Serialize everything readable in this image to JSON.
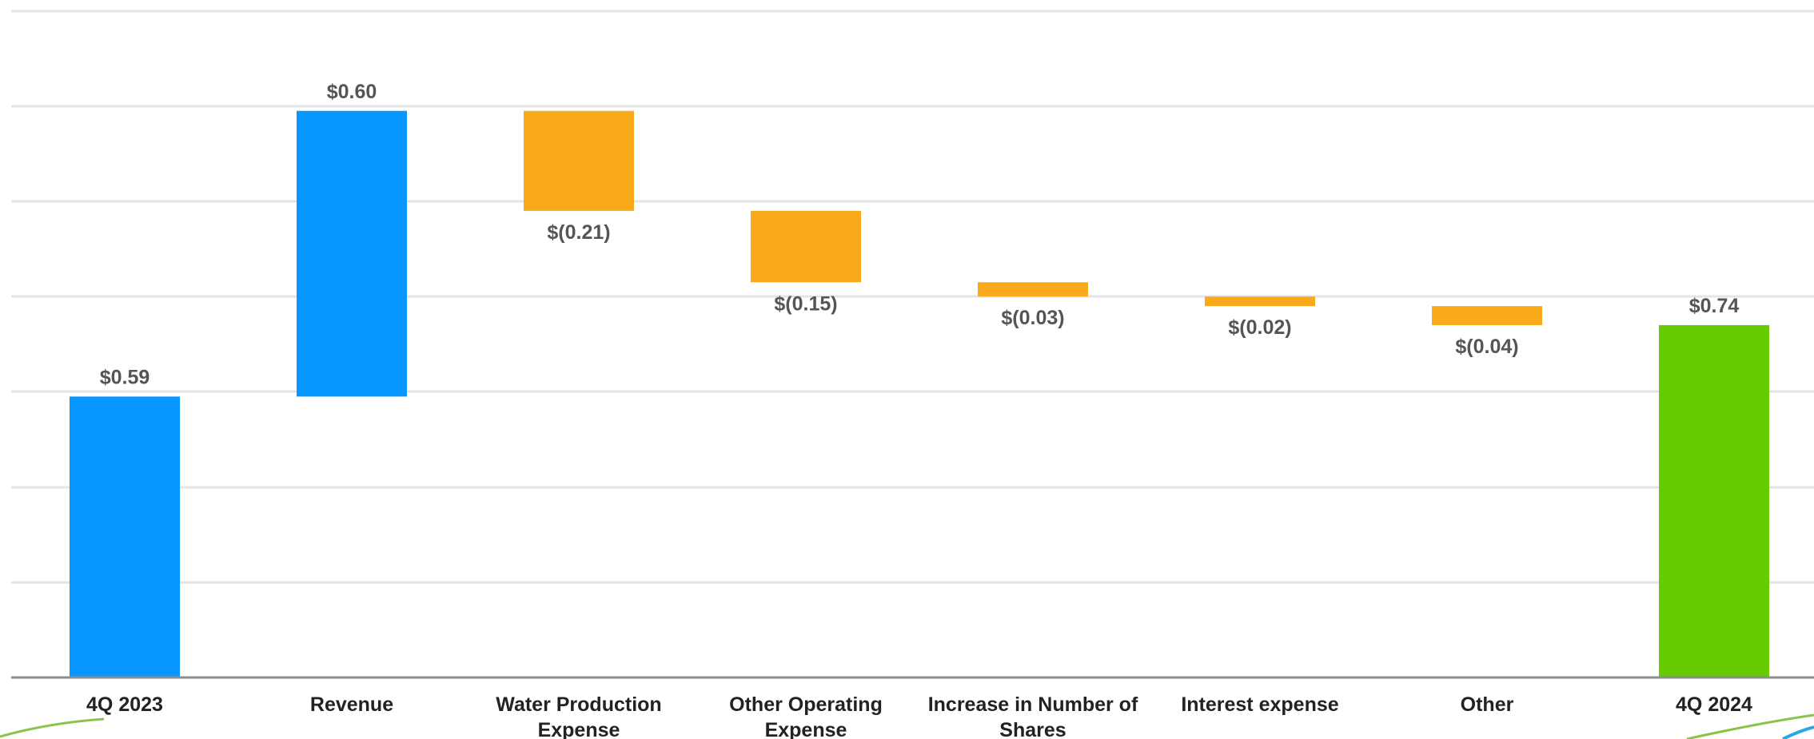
{
  "chart_data": {
    "type": "bar",
    "subtype": "waterfall",
    "title": "",
    "xlabel": "",
    "ylabel": "",
    "ylim": [
      0,
      1.4
    ],
    "grid": true,
    "legend": "none",
    "categories": [
      "4Q 2023",
      "Revenue",
      "Water Production Expense",
      "Other Operating Expense",
      "Increase in Number of Shares",
      "Interest expense",
      "Other",
      "4Q 2024"
    ],
    "values": [
      0.59,
      0.6,
      -0.21,
      -0.15,
      -0.03,
      -0.02,
      -0.04,
      0.74
    ],
    "measure": [
      "total",
      "relative",
      "relative",
      "relative",
      "relative",
      "relative",
      "relative",
      "total"
    ],
    "data_labels": [
      "$0.59",
      "$0.60",
      "$(0.21)",
      "$(0.15)",
      "$(0.03)",
      "$(0.02)",
      "$(0.04)",
      "$0.74"
    ],
    "colors": {
      "total_start": "#0796FF",
      "increase": "#0796FF",
      "decrease": "#F9AA1A",
      "total_end": "#66CC00",
      "gridline": "#E4E4E4",
      "axis": "#8C8C8C",
      "label_text": "#555555",
      "category_text": "#222222"
    }
  }
}
